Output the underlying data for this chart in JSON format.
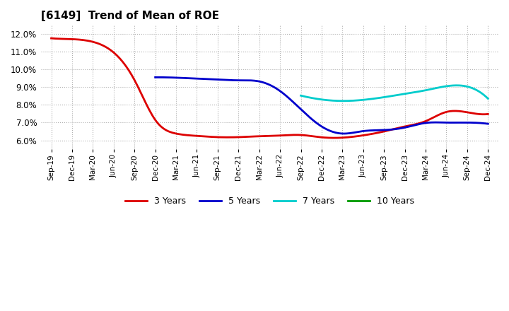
{
  "title": "[6149]  Trend of Mean of ROE",
  "background_color": "#ffffff",
  "plot_background_color": "#ffffff",
  "grid_color": "#b0b0b0",
  "ylim": [
    0.055,
    0.125
  ],
  "yticks": [
    0.06,
    0.07,
    0.08,
    0.09,
    0.1,
    0.11,
    0.12
  ],
  "x_tick_labels": [
    "Sep-19",
    "Dec-19",
    "Mar-20",
    "Jun-20",
    "Sep-20",
    "Dec-20",
    "Mar-21",
    "Jun-21",
    "Sep-21",
    "Dec-21",
    "Mar-22",
    "Jun-22",
    "Sep-22",
    "Dec-22",
    "Mar-23",
    "Jun-23",
    "Sep-23",
    "Dec-23",
    "Mar-24",
    "Jun-24",
    "Sep-24",
    "Dec-24"
  ],
  "series": {
    "3 Years": {
      "color": "#dd0000",
      "x_indices": [
        0,
        1,
        2,
        3,
        4,
        5,
        6,
        7,
        8,
        9,
        10,
        11,
        12,
        13,
        14,
        15,
        16,
        17,
        18,
        19,
        20,
        21
      ],
      "values": [
        0.1175,
        0.117,
        0.1155,
        0.1095,
        0.094,
        0.0715,
        0.0638,
        0.0625,
        0.0618,
        0.0618,
        0.0623,
        0.0627,
        0.063,
        0.0617,
        0.0615,
        0.0628,
        0.065,
        0.0678,
        0.0708,
        0.076,
        0.0758,
        0.0748
      ]
    },
    "5 Years": {
      "color": "#0000cc",
      "x_indices": [
        5,
        6,
        7,
        8,
        9,
        10,
        11,
        12,
        13,
        14,
        15,
        16,
        17,
        18,
        19,
        20,
        21
      ],
      "values": [
        0.0955,
        0.0953,
        0.0948,
        0.0943,
        0.0938,
        0.0932,
        0.0878,
        0.0775,
        0.0678,
        0.0638,
        0.0652,
        0.0658,
        0.0672,
        0.0698,
        0.07,
        0.07,
        0.0693
      ]
    },
    "7 Years": {
      "color": "#00cccc",
      "x_indices": [
        12,
        13,
        14,
        15,
        16,
        17,
        18,
        19,
        20,
        21
      ],
      "values": [
        0.0852,
        0.083,
        0.0822,
        0.0828,
        0.0843,
        0.0862,
        0.0882,
        0.0905,
        0.0903,
        0.0835
      ]
    },
    "10 Years": {
      "color": "#009900",
      "x_indices": [],
      "values": []
    }
  },
  "legend_entries": [
    "3 Years",
    "5 Years",
    "7 Years",
    "10 Years"
  ],
  "legend_colors": [
    "#dd0000",
    "#0000cc",
    "#00cccc",
    "#009900"
  ]
}
